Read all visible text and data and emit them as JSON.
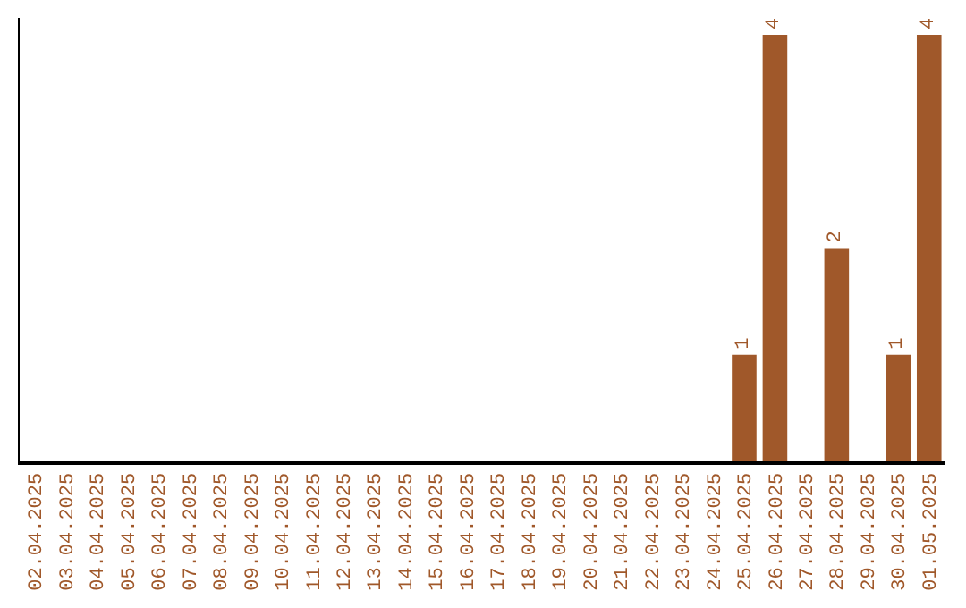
{
  "chart_data": {
    "type": "bar",
    "categories": [
      "02.04.2025",
      "03.04.2025",
      "04.04.2025",
      "05.04.2025",
      "06.04.2025",
      "07.04.2025",
      "08.04.2025",
      "09.04.2025",
      "10.04.2025",
      "11.04.2025",
      "12.04.2025",
      "13.04.2025",
      "14.04.2025",
      "15.04.2025",
      "16.04.2025",
      "17.04.2025",
      "18.04.2025",
      "19.04.2025",
      "20.04.2025",
      "21.04.2025",
      "22.04.2025",
      "23.04.2025",
      "24.04.2025",
      "25.04.2025",
      "26.04.2025",
      "27.04.2025",
      "28.04.2025",
      "29.04.2025",
      "30.04.2025",
      "01.05.2025"
    ],
    "values": [
      null,
      null,
      null,
      null,
      null,
      null,
      null,
      null,
      null,
      null,
      null,
      null,
      null,
      null,
      null,
      null,
      null,
      null,
      null,
      null,
      null,
      null,
      null,
      1,
      4,
      null,
      2,
      null,
      1,
      4
    ],
    "legend": false,
    "value_labels": [
      null,
      null,
      null,
      null,
      null,
      null,
      null,
      null,
      null,
      null,
      null,
      null,
      null,
      null,
      null,
      null,
      null,
      null,
      null,
      null,
      null,
      null,
      null,
      "1",
      "4",
      null,
      "2",
      null,
      "1",
      "4"
    ],
    "color": "#a0582a",
    "tick_labels": "x"
  }
}
